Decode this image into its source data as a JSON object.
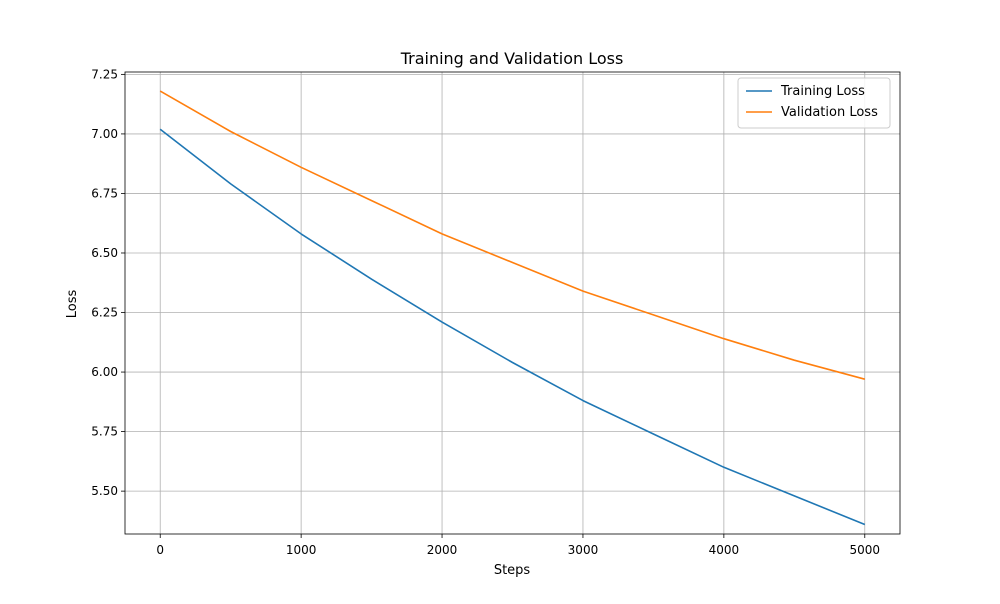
{
  "chart_data": {
    "type": "line",
    "title": "Training and Validation Loss",
    "xlabel": "Steps",
    "ylabel": "Loss",
    "xlim": [
      -250,
      5250
    ],
    "ylim": [
      5.32,
      7.26
    ],
    "xticks": [
      0,
      1000,
      2000,
      3000,
      4000,
      5000
    ],
    "yticks": [
      5.5,
      5.75,
      6.0,
      6.25,
      6.5,
      6.75,
      7.0,
      7.25
    ],
    "grid": true,
    "legend_position": "top-right",
    "x": [
      0,
      500,
      1000,
      1500,
      2000,
      2500,
      3000,
      3500,
      4000,
      4500,
      5000
    ],
    "series": [
      {
        "name": "Training Loss",
        "color": "#1f77b4",
        "values": [
          7.02,
          6.79,
          6.58,
          6.39,
          6.21,
          6.04,
          5.88,
          5.74,
          5.6,
          5.48,
          5.36
        ]
      },
      {
        "name": "Validation Loss",
        "color": "#ff7f0e",
        "values": [
          7.18,
          7.01,
          6.86,
          6.72,
          6.58,
          6.46,
          6.34,
          6.24,
          6.14,
          6.05,
          5.97
        ]
      }
    ]
  }
}
